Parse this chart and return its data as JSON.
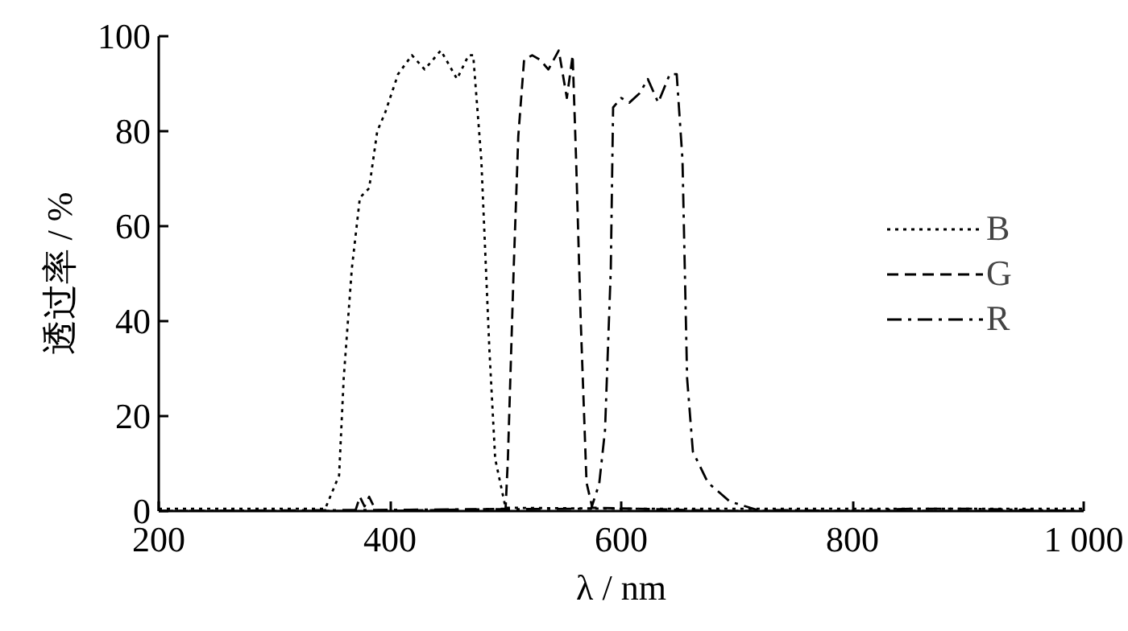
{
  "chart_data": {
    "type": "line",
    "xlabel": "λ / nm",
    "ylabel": "透过率 / %",
    "xlim": [
      200,
      1000
    ],
    "ylim": [
      0,
      100
    ],
    "xticks": [
      200,
      400,
      600,
      800,
      {
        "value": 1000,
        "label": "1 000"
      }
    ],
    "yticks": [
      0,
      20,
      40,
      60,
      80,
      100
    ],
    "grid": false,
    "legend": "right",
    "marker": "none",
    "series": [
      {
        "name": "B",
        "color": "#000000",
        "line_style": "dotted",
        "x": [
          200,
          300,
          344,
          356,
          360,
          367,
          374,
          382,
          389,
          396,
          407,
          419,
          430,
          444,
          458,
          468,
          472,
          479,
          486,
          491,
          500,
          600,
          800,
          1000
        ],
        "values": [
          0.5,
          0.5,
          0.5,
          7.5,
          28,
          51,
          66,
          68,
          80,
          84,
          92,
          96,
          93,
          97,
          91,
          96,
          96,
          74,
          34,
          11,
          0.7,
          0.5,
          0.5,
          0.5
        ]
      },
      {
        "name": "G",
        "color": "#000000",
        "line_style": "dashed",
        "x": [
          200,
          370,
          374,
          378,
          382,
          386,
          390,
          500,
          502,
          507,
          511,
          516,
          523,
          530,
          537,
          546,
          553,
          558,
          561,
          565,
          570,
          575,
          700,
          1000
        ],
        "values": [
          0,
          0,
          3,
          1,
          3,
          1,
          0,
          0.5,
          11,
          51,
          79,
          95,
          96,
          95,
          93,
          97,
          87,
          96,
          74,
          40,
          6,
          0.7,
          0,
          0
        ]
      },
      {
        "name": "R",
        "color": "#000000",
        "line_style": "dashdot",
        "x": [
          200,
          574,
          581,
          586,
          591,
          593,
          600,
          607,
          616,
          623,
          632,
          642,
          648,
          653,
          657,
          662,
          675,
          694,
          717,
          800,
          850,
          900,
          1000
        ],
        "values": [
          0,
          0.5,
          5.8,
          17,
          51,
          85,
          87,
          86,
          88,
          91,
          86,
          92,
          92,
          74,
          28,
          12.5,
          6,
          2,
          0.3,
          0,
          0.5,
          0.5,
          0
        ]
      }
    ]
  }
}
